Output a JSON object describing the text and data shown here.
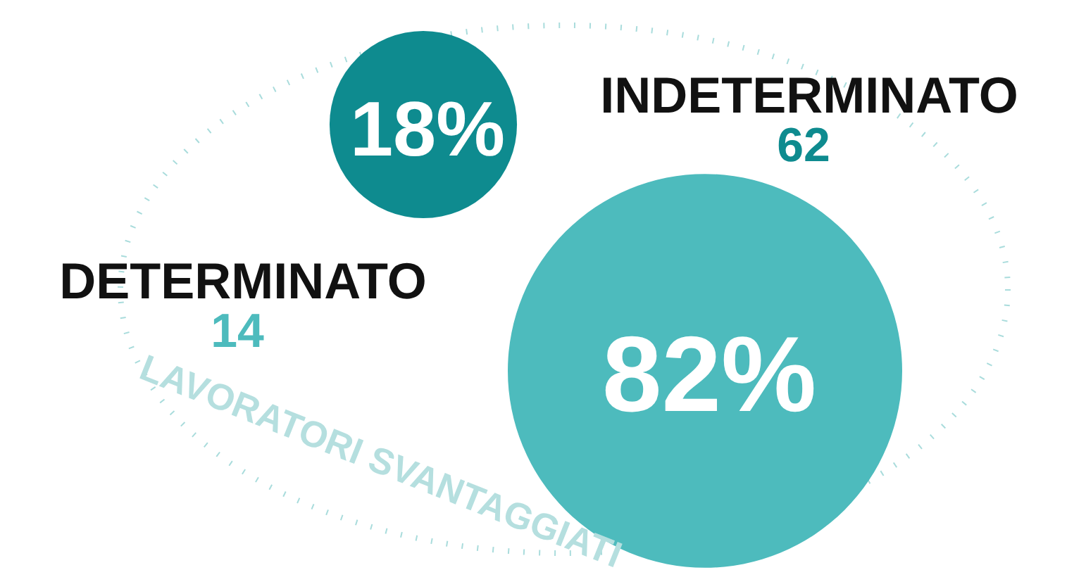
{
  "chart_data": {
    "type": "other",
    "title": "LAVORATORI SVANTAGGIATI",
    "categories": [
      "DETERMINATO",
      "INDETERMINATO"
    ],
    "values": [
      14,
      62
    ],
    "colors": [
      "#0e8b8f",
      "#4dbbbd"
    ],
    "data_labels": true,
    "annotations": [
      "18%",
      "82%"
    ]
  }
}
